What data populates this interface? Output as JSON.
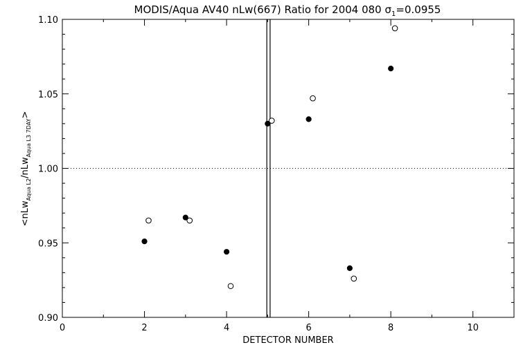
{
  "chart_data": {
    "type": "scatter",
    "title_main": "MODIS/Aqua AV40 nLw(667) Ratio for 2004 080 ",
    "title_sigma": "σ",
    "title_sigma_sub": "1",
    "title_sigma_value": "=0.0955",
    "xlabel": "DETECTOR NUMBER",
    "ylabel_parts": [
      "<nLw",
      "Aqua L2",
      "/nLw",
      "Aqua L3 7DAY",
      ">"
    ],
    "xlim": [
      0,
      11
    ],
    "ylim": [
      0.9,
      1.1
    ],
    "x_ticks": [
      0,
      2,
      4,
      6,
      8,
      10
    ],
    "x_tick_labels": [
      "0",
      "2",
      "4",
      "6",
      "8",
      "10"
    ],
    "y_ticks": [
      0.9,
      0.95,
      1.0,
      1.05,
      1.1
    ],
    "y_tick_labels": [
      "0.90",
      "0.95",
      "1.00",
      "1.05",
      "1.10"
    ],
    "reference_line_y": 1.0,
    "vertical_lines_x": [
      4.98,
      5.06
    ],
    "series": [
      {
        "marker": "filled-circle",
        "x": [
          2,
          3,
          4,
          5,
          6,
          7,
          8
        ],
        "y": [
          0.951,
          0.967,
          0.944,
          1.03,
          1.033,
          0.933,
          1.067
        ]
      },
      {
        "marker": "open-circle",
        "x": [
          2.1,
          3.1,
          4.1,
          5.1,
          6.1,
          7.1,
          8.1
        ],
        "y": [
          0.965,
          0.965,
          0.921,
          1.032,
          1.047,
          0.926,
          1.094
        ]
      }
    ],
    "grid": false
  }
}
